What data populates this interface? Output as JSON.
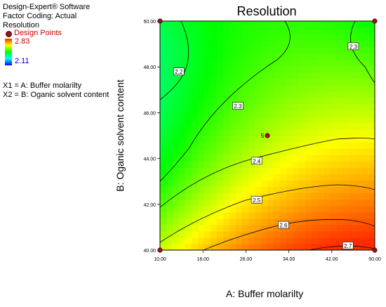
{
  "software": {
    "name": "Design-Expert® Software",
    "coding": "Factor Coding: Actual",
    "response": "Resolution"
  },
  "legend": {
    "design_points_label": "Design Points",
    "high_value": "2.83",
    "low_value": "2.11",
    "point_color": "#8b1a1a",
    "high_color": "#ff2a00",
    "low_color": "#0000ff"
  },
  "factors": {
    "x1": "X1 = A: Buffer molarilty",
    "x2": "X2 = B: Oganic solvent content"
  },
  "chart_data": {
    "type": "contour",
    "title": "Resolution",
    "xlabel": "A: Buffer molarilty",
    "ylabel": "B: Oganic solvent content",
    "xlim": [
      10,
      50
    ],
    "ylim": [
      40,
      50
    ],
    "x_ticks": [
      "10.00",
      "18.00",
      "26.00",
      "34.00",
      "42.00",
      "50.00"
    ],
    "y_ticks": [
      "40.00",
      "42.00",
      "44.00",
      "46.00",
      "48.00",
      "50.00"
    ],
    "z_range": [
      2.11,
      2.83
    ],
    "contours": [
      {
        "level": "2.2",
        "label_at": [
          13.5,
          47.8
        ]
      },
      {
        "level": "2.3",
        "label_at": [
          24.5,
          46.3
        ]
      },
      {
        "level": "2.3",
        "label_at": [
          46.0,
          48.9
        ]
      },
      {
        "level": "2.4",
        "label_at": [
          28.0,
          43.9
        ]
      },
      {
        "level": "2.5",
        "label_at": [
          28.0,
          42.2
        ]
      },
      {
        "level": "2.6",
        "label_at": [
          33.0,
          41.1
        ]
      },
      {
        "level": "2.7",
        "label_at": [
          45.0,
          40.2
        ]
      }
    ],
    "design_points": [
      {
        "x": 10,
        "y": 50
      },
      {
        "x": 50,
        "y": 50
      },
      {
        "x": 10,
        "y": 40
      },
      {
        "x": 50,
        "y": 40
      },
      {
        "x": 30,
        "y": 45,
        "label": "5"
      }
    ]
  }
}
